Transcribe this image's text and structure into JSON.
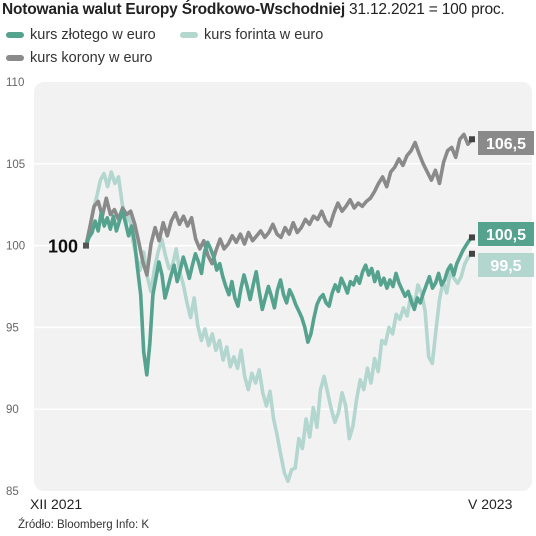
{
  "title": {
    "bold": "Notowania walut Europy Środkowo-Wschodniej",
    "rest": " 31.12.2021 = 100 proc."
  },
  "colors": {
    "pln": "#55a28f",
    "huf": "#b3d6cf",
    "czk": "#8a8a8a",
    "plot_bg": "#f2f2f2",
    "grid": "#ffffff"
  },
  "source": "Źródło: Bloomberg Info: K",
  "chart_data": {
    "type": "line",
    "x_start_label": "XII 2021",
    "x_end_label": "V 2023",
    "ylim": [
      85,
      110
    ],
    "yticks": [
      85,
      90,
      95,
      100,
      105,
      110
    ],
    "base_label": "100",
    "series": [
      {
        "name": "kurs złotego w euro",
        "color_key": "pln",
        "end_label": "100,5",
        "values": [
          100,
          100.5,
          100.8,
          101.5,
          100.9,
          102.0,
          101.2,
          101.7,
          101.0,
          101.8,
          100.9,
          101.5,
          102.1,
          101.4,
          100.6,
          101.2,
          100.2,
          98.5,
          97.0,
          93.5,
          92.1,
          94.0,
          97.0,
          98.0,
          99.0,
          98.2,
          96.8,
          97.5,
          98.2,
          98.8,
          97.8,
          98.5,
          99.3,
          98.7,
          98.0,
          98.8,
          99.5,
          99.0,
          98.3,
          99.6,
          100.2,
          99.8,
          99.3,
          98.5,
          98.9,
          98.1,
          97.5,
          97.0,
          97.8,
          96.8,
          96.3,
          97.4,
          98.2,
          97.5,
          96.7,
          97.6,
          98.4,
          97.2,
          96.1,
          96.8,
          97.5,
          96.9,
          96.2,
          97.3,
          97.9,
          97.0,
          96.5,
          97.3,
          96.9,
          96.4,
          96.0,
          95.6,
          95.0,
          94.1,
          94.6,
          95.6,
          96.4,
          96.8,
          97.0,
          96.5,
          96.3,
          97.1,
          97.6,
          97.2,
          98.0,
          97.6,
          97.1,
          97.8,
          97.6,
          98.1,
          97.7,
          98.4,
          98.8,
          98.2,
          98.6,
          97.8,
          98.4,
          97.6,
          98.0,
          97.4,
          97.9,
          97.5,
          98.3,
          97.7,
          97.3,
          96.9,
          97.2,
          96.6,
          96.1,
          96.8,
          96.5,
          97.1,
          97.6,
          98.1,
          97.4,
          97.7,
          98.3,
          97.6,
          97.9,
          98.5,
          98.8,
          98.2,
          98.9,
          99.3,
          99.7,
          100.0,
          100.3,
          100.5
        ]
      },
      {
        "name": "kurs forinta w euro",
        "color_key": "huf",
        "end_label": "99,5",
        "values": [
          100,
          101.0,
          102.2,
          103.0,
          104.0,
          104.4,
          103.6,
          104.5,
          103.8,
          104.2,
          102.6,
          101.3,
          102.0,
          100.3,
          99.3,
          98.5,
          99.6,
          98.1,
          97.2,
          98.6,
          99.6,
          100.4,
          99.4,
          98.6,
          98.8,
          99.8,
          98.4,
          97.6,
          96.5,
          95.6,
          96.8,
          95.1,
          94.2,
          94.9,
          93.9,
          94.6,
          93.6,
          94.2,
          93.0,
          93.8,
          92.6,
          93.2,
          92.5,
          93.6,
          92.0,
          91.2,
          92.2,
          91.6,
          92.4,
          91.0,
          90.2,
          91.1,
          89.4,
          88.4,
          87.2,
          86.1,
          85.6,
          86.3,
          86.4,
          88.2,
          87.6,
          89.4,
          88.3,
          90.1,
          88.9,
          91.2,
          92.0,
          91.0,
          90.0,
          89.2,
          89.8,
          91.0,
          90.2,
          88.2,
          89.0,
          90.6,
          91.8,
          91.2,
          92.5,
          91.6,
          93.1,
          92.3,
          94.2,
          94.0,
          95.0,
          94.6,
          95.8,
          95.5,
          96.2,
          95.7,
          96.9,
          96.3,
          97.6,
          97.1,
          96.0,
          93.2,
          92.8,
          94.8,
          96.7,
          97.8,
          97.1,
          98.4,
          98.0,
          97.7,
          98.1,
          98.9,
          99.3,
          99.5
        ]
      },
      {
        "name": "kurs korony w euro",
        "color_key": "czk",
        "end_label": "106,5",
        "values": [
          100,
          101.2,
          102.4,
          102.7,
          101.8,
          102.9,
          101.9,
          102.2,
          101.6,
          102.3,
          101.9,
          102.1,
          101.3,
          100.2,
          99.0,
          98.2,
          100.1,
          101.1,
          100.3,
          101.4,
          100.6,
          101.5,
          102.0,
          101.3,
          101.8,
          101.2,
          101.7,
          100.4,
          99.8,
          100.3,
          99.4,
          98.9,
          99.7,
          100.4,
          99.8,
          100.1,
          100.6,
          100.2,
          100.7,
          100.1,
          100.8,
          100.3,
          100.6,
          100.9,
          100.5,
          100.8,
          101.3,
          100.7,
          100.5,
          101.1,
          100.7,
          101.4,
          100.8,
          101.1,
          101.6,
          101.3,
          101.8,
          101.6,
          102.1,
          101.5,
          101.2,
          102.0,
          102.6,
          102.1,
          102.4,
          102.8,
          102.3,
          102.6,
          102.4,
          102.7,
          102.9,
          103.3,
          103.8,
          104.2,
          103.6,
          104.5,
          104.8,
          105.3,
          104.9,
          105.5,
          105.8,
          106.3,
          105.6,
          105.0,
          104.5,
          104.0,
          104.6,
          103.8,
          105.1,
          105.8,
          106.0,
          105.4,
          106.5,
          106.8,
          106.2,
          106.5
        ]
      }
    ]
  }
}
